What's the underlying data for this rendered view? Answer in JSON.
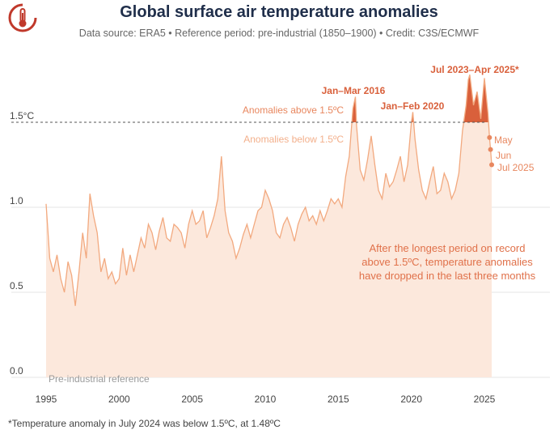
{
  "header": {
    "title": "Global surface air temperature anomalies",
    "subtitle": "Data source: ERA5 • Reference period: pre-industrial (1850–1900) • Credit: C3S/ECMWF"
  },
  "footnote": "*Temperature anomaly in July 2024 was below 1.5ºC, at 1.48ºC",
  "colors": {
    "area_fill": "#fce8dc",
    "line": "#f2a97f",
    "highlight": "#d9603b",
    "threshold": "#555555",
    "title": "#1f2e4a"
  },
  "chart_data": {
    "type": "area",
    "title": "Global surface air temperature anomalies",
    "xlabel": "",
    "ylabel": "",
    "x_range": [
      1995.0,
      2025.5
    ],
    "xlim": [
      1994,
      2028
    ],
    "ylim": [
      0.0,
      1.85
    ],
    "threshold": 1.5,
    "grid": true,
    "x_ticks": [
      1995,
      2000,
      2005,
      2010,
      2015,
      2020,
      2025
    ],
    "y_ticks": [
      {
        "value": 0.0,
        "label": "0.0"
      },
      {
        "value": 0.5,
        "label": "0.5"
      },
      {
        "value": 1.0,
        "label": "1.0"
      },
      {
        "value": 1.5,
        "label": "1.5°C"
      }
    ],
    "series": [
      {
        "x": [
          1995.0,
          1995.25,
          1995.5,
          1995.75,
          1996.0,
          1996.25,
          1996.5,
          1996.75,
          1997.0,
          1997.25,
          1997.5,
          1997.75,
          1998.0,
          1998.25,
          1998.5,
          1998.75,
          1999.0,
          1999.25,
          1999.5,
          1999.75,
          2000.0,
          2000.25,
          2000.5,
          2000.75,
          2001.0,
          2001.25,
          2001.5,
          2001.75,
          2002.0,
          2002.25,
          2002.5,
          2002.75,
          2003.0,
          2003.25,
          2003.5,
          2003.75,
          2004.0,
          2004.25,
          2004.5,
          2004.75,
          2005.0,
          2005.25,
          2005.5,
          2005.75,
          2006.0,
          2006.25,
          2006.5,
          2006.75,
          2007.0,
          2007.25,
          2007.5,
          2007.75,
          2008.0,
          2008.25,
          2008.5,
          2008.75,
          2009.0,
          2009.25,
          2009.5,
          2009.75,
          2010.0,
          2010.25,
          2010.5,
          2010.75,
          2011.0,
          2011.25,
          2011.5,
          2011.75,
          2012.0,
          2012.25,
          2012.5,
          2012.75,
          2013.0,
          2013.25,
          2013.5,
          2013.75,
          2014.0,
          2014.25,
          2014.5,
          2014.75,
          2015.0,
          2015.25,
          2015.5,
          2015.75,
          2016.0,
          2016.17,
          2016.25,
          2016.5,
          2016.75,
          2017.0,
          2017.25,
          2017.5,
          2017.75,
          2018.0,
          2018.25,
          2018.5,
          2018.75,
          2019.0,
          2019.25,
          2019.5,
          2019.75,
          2020.0,
          2020.1,
          2020.25,
          2020.5,
          2020.75,
          2021.0,
          2021.25,
          2021.5,
          2021.75,
          2022.0,
          2022.25,
          2022.5,
          2022.75,
          2023.0,
          2023.25,
          2023.5,
          2023.75,
          2023.9,
          2024.0,
          2024.25,
          2024.5,
          2024.75,
          2025.0,
          2025.25,
          2025.35,
          2025.42,
          2025.5
        ],
        "values": [
          1.02,
          0.7,
          0.62,
          0.72,
          0.58,
          0.5,
          0.68,
          0.6,
          0.42,
          0.62,
          0.85,
          0.7,
          1.08,
          0.95,
          0.85,
          0.62,
          0.7,
          0.58,
          0.62,
          0.55,
          0.58,
          0.76,
          0.6,
          0.72,
          0.62,
          0.72,
          0.82,
          0.76,
          0.9,
          0.85,
          0.75,
          0.86,
          0.94,
          0.82,
          0.8,
          0.9,
          0.88,
          0.85,
          0.76,
          0.9,
          0.98,
          0.9,
          0.92,
          0.98,
          0.82,
          0.88,
          0.95,
          1.05,
          1.3,
          0.98,
          0.85,
          0.8,
          0.7,
          0.76,
          0.84,
          0.9,
          0.82,
          0.9,
          0.98,
          1.0,
          1.1,
          1.05,
          0.98,
          0.85,
          0.82,
          0.9,
          0.94,
          0.88,
          0.8,
          0.9,
          0.96,
          1.0,
          0.92,
          0.95,
          0.9,
          0.98,
          0.92,
          0.98,
          1.05,
          1.02,
          1.05,
          1.0,
          1.18,
          1.3,
          1.58,
          1.65,
          1.48,
          1.22,
          1.16,
          1.28,
          1.42,
          1.25,
          1.1,
          1.05,
          1.2,
          1.12,
          1.15,
          1.22,
          1.3,
          1.15,
          1.25,
          1.5,
          1.56,
          1.4,
          1.22,
          1.1,
          1.05,
          1.15,
          1.24,
          1.08,
          1.1,
          1.2,
          1.15,
          1.05,
          1.1,
          1.2,
          1.45,
          1.6,
          1.75,
          1.78,
          1.6,
          1.68,
          1.52,
          1.76,
          1.55,
          1.41,
          1.34,
          1.25
        ]
      }
    ]
  },
  "annotations": {
    "peak_2016": "Jan–Mar 2016",
    "peak_2020": "Jan–Feb 2020",
    "peak_2023": "Jul 2023–Apr 2025*",
    "above_label": "Anomalies above 1.5ºC",
    "below_label": "Anomalies below 1.5ºC",
    "month_may": "May",
    "month_jun": "Jun",
    "month_jul": "Jul 2025",
    "note_line1": "After the longest period on record",
    "note_line2": "above 1.5ºC, temperature anomalies",
    "note_line3": "have dropped in the last three months",
    "reference_label": "Pre-industrial reference"
  }
}
